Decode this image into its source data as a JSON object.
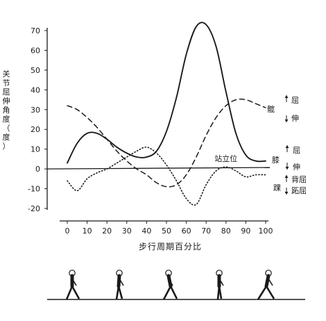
{
  "chart_data": {
    "type": "line",
    "title": "",
    "xlabel": "步行周期百分比",
    "ylabel_chars": [
      "关",
      "节",
      "屈",
      "伸",
      "角",
      "度",
      "（",
      "度",
      "）"
    ],
    "xlim": [
      0,
      100
    ],
    "ylim": [
      -20,
      70
    ],
    "x_ticks": [
      0,
      10,
      20,
      30,
      40,
      50,
      60,
      70,
      80,
      90,
      100
    ],
    "y_ticks": [
      70,
      60,
      50,
      40,
      30,
      20,
      10,
      0,
      -10,
      -20
    ],
    "series": [
      {
        "name": "髋",
        "style": "dashed",
        "x": [
          0,
          5,
          10,
          15,
          20,
          25,
          30,
          35,
          40,
          45,
          50,
          55,
          60,
          65,
          70,
          75,
          80,
          85,
          90,
          95,
          100
        ],
        "y": [
          32,
          30,
          26,
          21,
          15,
          9,
          4,
          0,
          -3,
          -7,
          -9,
          -8,
          -3,
          6,
          17,
          26,
          32,
          35,
          35,
          33,
          31
        ]
      },
      {
        "name": "膝",
        "style": "solid",
        "x": [
          0,
          5,
          10,
          15,
          20,
          25,
          30,
          35,
          40,
          45,
          50,
          55,
          60,
          65,
          70,
          75,
          80,
          85,
          90,
          95,
          100
        ],
        "y": [
          3,
          13,
          18,
          18,
          15,
          11,
          8,
          6,
          6,
          9,
          19,
          36,
          58,
          72,
          73,
          62,
          39,
          18,
          7,
          4,
          4
        ]
      },
      {
        "name": "踝",
        "style": "dotted",
        "x": [
          0,
          5,
          10,
          15,
          20,
          25,
          30,
          35,
          40,
          45,
          50,
          55,
          60,
          65,
          70,
          75,
          80,
          85,
          90,
          95,
          100
        ],
        "y": [
          -6,
          -11,
          -5,
          -2,
          0,
          3,
          6,
          9,
          11,
          8,
          2,
          -6,
          -15,
          -18,
          -8,
          -1,
          1,
          -1,
          -4,
          -3,
          -3
        ]
      }
    ],
    "reference_line": {
      "label": "站立位",
      "y": 0
    },
    "right_labels": [
      {
        "joint": "髋",
        "upper": "屈",
        "lower": "伸"
      },
      {
        "joint": "膝",
        "upper": "屈",
        "lower": "伸"
      },
      {
        "joint": "踝",
        "upper": "背屈",
        "lower": "跖屈"
      }
    ]
  },
  "colors": {
    "ink": "#1a1a1a",
    "background": "#ffffff"
  },
  "figures": [
    "walker-figure",
    "walker-figure",
    "walker-figure",
    "walker-figure",
    "walker-figure"
  ]
}
